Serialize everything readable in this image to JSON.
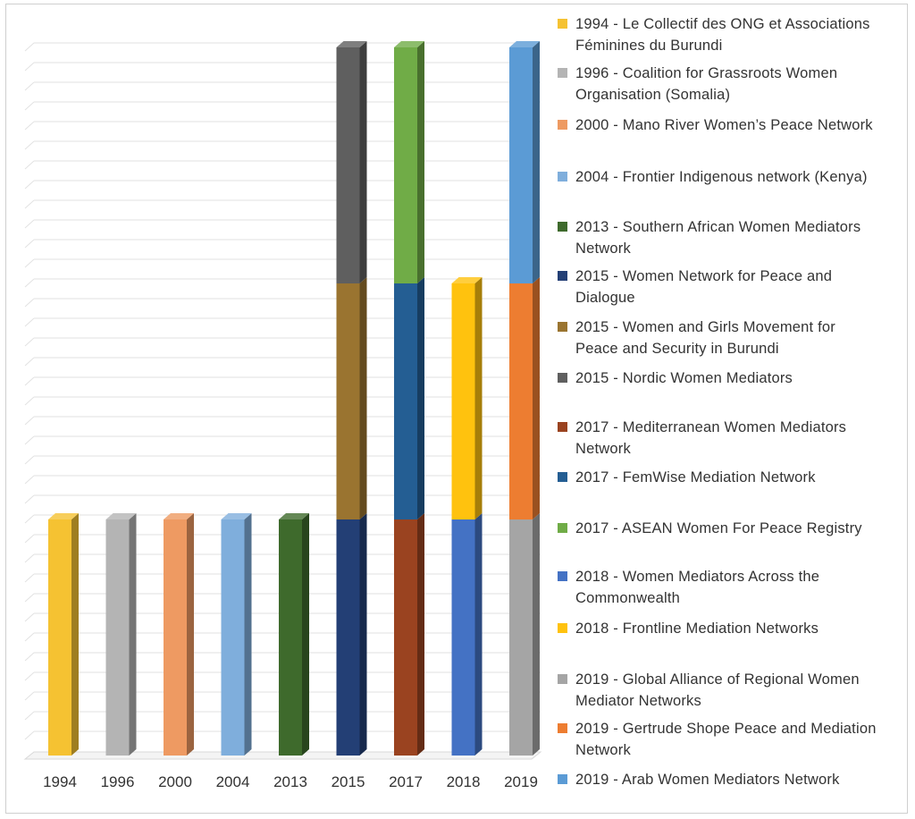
{
  "chart_data": {
    "type": "bar",
    "stacked": true,
    "three_d": true,
    "categories": [
      "1994",
      "1996",
      "2000",
      "2004",
      "2013",
      "2015",
      "2017",
      "2018",
      "2019"
    ],
    "ylim": [
      0,
      3
    ],
    "grid": true,
    "legend_position": "right",
    "series": [
      {
        "name": "1994 - Le Collectif des ONG et Associations Féminines du Burundi",
        "color": "#F5C232",
        "values": [
          1,
          0,
          0,
          0,
          0,
          0,
          0,
          0,
          0
        ]
      },
      {
        "name": "1996 - Coalition for Grassroots Women Organisation (Somalia)",
        "color": "#B4B4B4",
        "values": [
          0,
          1,
          0,
          0,
          0,
          0,
          0,
          0,
          0
        ]
      },
      {
        "name": "2000 - Mano River Women’s Peace Network",
        "color": "#EE9A62",
        "values": [
          0,
          0,
          1,
          0,
          0,
          0,
          0,
          0,
          0
        ]
      },
      {
        "name": "2004 - Frontier Indigenous network (Kenya)",
        "color": "#7FAEDC",
        "values": [
          0,
          0,
          0,
          1,
          0,
          0,
          0,
          0,
          0
        ]
      },
      {
        "name": "2013 - Southern African Women Mediators Network",
        "color": "#3E6A2C",
        "values": [
          0,
          0,
          0,
          0,
          1,
          0,
          0,
          0,
          0
        ]
      },
      {
        "name": "2015 - Women Network for Peace and Dialogue",
        "color": "#233F75",
        "values": [
          0,
          0,
          0,
          0,
          0,
          1,
          0,
          0,
          0
        ]
      },
      {
        "name": "2015 - Women and Girls Movement for Peace and Security in Burundi",
        "color": "#9A7430",
        "values": [
          0,
          0,
          0,
          0,
          0,
          1,
          0,
          0,
          0
        ]
      },
      {
        "name": "2015 - Nordic Women Mediators",
        "color": "#5F5F5F",
        "values": [
          0,
          0,
          0,
          0,
          0,
          1,
          0,
          0,
          0
        ]
      },
      {
        "name": "2017 - Mediterranean Women Mediators Network",
        "color": "#9A4320",
        "values": [
          0,
          0,
          0,
          0,
          0,
          0,
          1,
          0,
          0
        ]
      },
      {
        "name": "2017 - FemWise Mediation Network",
        "color": "#245E93",
        "values": [
          0,
          0,
          0,
          0,
          0,
          0,
          1,
          0,
          0
        ]
      },
      {
        "name": "2017 - ASEAN Women For Peace Registry",
        "color": "#70AC47",
        "values": [
          0,
          0,
          0,
          0,
          0,
          0,
          1,
          0,
          0
        ]
      },
      {
        "name": "2018 - Women Mediators Across the Commonwealth",
        "color": "#4472C4",
        "values": [
          0,
          0,
          0,
          0,
          0,
          0,
          0,
          1,
          0
        ]
      },
      {
        "name": "2018 - Frontline Mediation Networks",
        "color": "#FFC20E",
        "values": [
          0,
          0,
          0,
          0,
          0,
          0,
          0,
          1,
          0
        ]
      },
      {
        "name": "2019 - Global Alliance of Regional Women Mediator Networks",
        "color": "#A5A5A5",
        "values": [
          0,
          0,
          0,
          0,
          0,
          0,
          0,
          0,
          1
        ]
      },
      {
        "name": "2019 - Gertrude Shope Peace and Mediation Network",
        "color": "#ED7D31",
        "values": [
          0,
          0,
          0,
          0,
          0,
          0,
          0,
          0,
          1
        ]
      },
      {
        "name": "2019 - Arab Women Mediators Network",
        "color": "#5B9BD5",
        "values": [
          0,
          0,
          0,
          0,
          0,
          0,
          0,
          0,
          1
        ]
      }
    ]
  },
  "legend": {
    "items": [
      {
        "line1": "1994 - Le Collectif des ONG et Associations",
        "line2": "Féminines du Burundi"
      },
      {
        "line1": "1996 - Coalition for Grassroots Women",
        "line2": "Organisation (Somalia)"
      },
      {
        "line1": "2000 - Mano River Women’s Peace Network",
        "line2": ""
      },
      {
        "line1": "2004 - Frontier Indigenous network (Kenya)",
        "line2": ""
      },
      {
        "line1": "2013 - Southern African Women Mediators",
        "line2": "Network"
      },
      {
        "line1": "2015 - Women Network for Peace and",
        "line2": "Dialogue"
      },
      {
        "line1": "2015 - Women and Girls Movement for",
        "line2": "Peace and Security in Burundi"
      },
      {
        "line1": "2015 - Nordic Women Mediators",
        "line2": ""
      },
      {
        "line1": "2017 - Mediterranean Women Mediators",
        "line2": "Network"
      },
      {
        "line1": "2017 - FemWise Mediation Network",
        "line2": ""
      },
      {
        "line1": "2017 - ASEAN Women For Peace Registry",
        "line2": ""
      },
      {
        "line1": "2018 - Women Mediators Across the",
        "line2": "Commonwealth"
      },
      {
        "line1": "2018 - Frontline Mediation Networks",
        "line2": ""
      },
      {
        "line1": "2019 - Global Alliance of Regional Women",
        "line2": "Mediator Networks"
      },
      {
        "line1": "2019 - Gertrude Shope Peace and Mediation",
        "line2": "Network"
      },
      {
        "line1": "2019 - Arab Women Mediators Network",
        "line2": ""
      }
    ]
  }
}
